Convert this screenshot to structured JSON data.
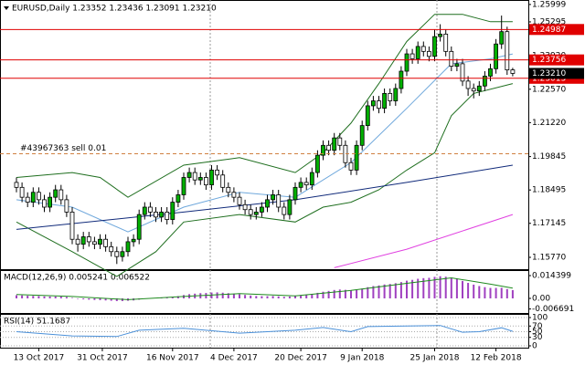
{
  "chart_data": [
    {
      "type": "candlestick",
      "title": "EURUSD,Daily  1.23352 1.23436 1.23091 1.23210",
      "open": [
        1.188,
        1.186,
        1.182,
        1.18,
        1.184,
        1.181,
        1.178,
        1.182,
        1.185,
        1.181,
        1.176,
        1.165,
        1.163,
        1.166,
        1.164,
        1.163,
        1.165,
        1.162,
        1.16,
        1.158,
        1.16,
        1.164,
        1.165,
        1.175,
        1.178,
        1.176,
        1.174,
        1.176,
        1.173,
        1.18,
        1.183,
        1.19,
        1.192,
        1.189,
        1.19,
        1.187,
        1.193,
        1.191,
        1.186,
        1.184,
        1.182,
        1.179,
        1.177,
        1.175,
        1.176,
        1.178,
        1.181,
        1.183,
        1.178,
        1.175,
        1.181,
        1.186,
        1.188,
        1.187,
        1.192,
        1.199,
        1.203,
        1.201,
        1.206,
        1.203,
        1.196,
        1.193,
        1.203,
        1.211,
        1.219,
        1.221,
        1.218,
        1.224,
        1.221,
        1.226,
        1.233,
        1.24,
        1.238,
        1.243,
        1.241,
        1.239,
        1.247,
        1.248,
        1.241,
        1.235,
        1.236,
        1.229,
        1.226,
        1.225,
        1.227,
        1.231,
        1.234,
        1.244,
        1.249,
        1.23352
      ],
      "high": [
        1.19,
        1.188,
        1.184,
        1.186,
        1.186,
        1.183,
        1.184,
        1.187,
        1.187,
        1.183,
        1.178,
        1.167,
        1.168,
        1.168,
        1.166,
        1.167,
        1.167,
        1.164,
        1.162,
        1.162,
        1.166,
        1.167,
        1.177,
        1.18,
        1.18,
        1.178,
        1.178,
        1.178,
        1.182,
        1.185,
        1.192,
        1.194,
        1.194,
        1.192,
        1.192,
        1.195,
        1.195,
        1.193,
        1.188,
        1.186,
        1.184,
        1.181,
        1.179,
        1.178,
        1.18,
        1.183,
        1.185,
        1.185,
        1.18,
        1.183,
        1.188,
        1.19,
        1.19,
        1.194,
        1.201,
        1.205,
        1.205,
        1.208,
        1.208,
        1.205,
        1.198,
        1.205,
        1.213,
        1.221,
        1.223,
        1.223,
        1.226,
        1.226,
        1.228,
        1.235,
        1.242,
        1.242,
        1.245,
        1.245,
        1.243,
        1.25,
        1.252,
        1.25,
        1.243,
        1.238,
        1.238,
        1.231,
        1.228,
        1.229,
        1.233,
        1.236,
        1.246,
        1.2555,
        1.251,
        1.23436
      ],
      "low": [
        1.184,
        1.18,
        1.178,
        1.178,
        1.179,
        1.176,
        1.176,
        1.18,
        1.179,
        1.174,
        1.163,
        1.16,
        1.161,
        1.162,
        1.161,
        1.161,
        1.16,
        1.158,
        1.155,
        1.156,
        1.158,
        1.162,
        1.163,
        1.173,
        1.174,
        1.172,
        1.172,
        1.171,
        1.171,
        1.178,
        1.181,
        1.188,
        1.187,
        1.187,
        1.185,
        1.185,
        1.189,
        1.184,
        1.182,
        1.18,
        1.177,
        1.175,
        1.173,
        1.173,
        1.174,
        1.176,
        1.179,
        1.176,
        1.173,
        1.173,
        1.179,
        1.184,
        1.185,
        1.185,
        1.19,
        1.197,
        1.199,
        1.199,
        1.201,
        1.194,
        1.191,
        1.191,
        1.201,
        1.209,
        1.217,
        1.216,
        1.216,
        1.219,
        1.219,
        1.224,
        1.231,
        1.236,
        1.236,
        1.239,
        1.237,
        1.237,
        1.245,
        1.239,
        1.233,
        1.233,
        1.227,
        1.223,
        1.222,
        1.223,
        1.225,
        1.229,
        1.232,
        1.242,
        1.2315,
        1.23091
      ],
      "close": [
        1.186,
        1.182,
        1.18,
        1.184,
        1.181,
        1.178,
        1.182,
        1.185,
        1.181,
        1.176,
        1.165,
        1.163,
        1.166,
        1.164,
        1.163,
        1.165,
        1.162,
        1.16,
        1.158,
        1.16,
        1.164,
        1.165,
        1.175,
        1.178,
        1.176,
        1.174,
        1.176,
        1.173,
        1.18,
        1.183,
        1.19,
        1.192,
        1.189,
        1.19,
        1.187,
        1.193,
        1.191,
        1.186,
        1.184,
        1.182,
        1.179,
        1.177,
        1.175,
        1.176,
        1.178,
        1.181,
        1.183,
        1.178,
        1.175,
        1.181,
        1.186,
        1.188,
        1.187,
        1.192,
        1.199,
        1.203,
        1.201,
        1.206,
        1.203,
        1.196,
        1.193,
        1.203,
        1.211,
        1.219,
        1.221,
        1.218,
        1.224,
        1.221,
        1.226,
        1.233,
        1.24,
        1.238,
        1.243,
        1.241,
        1.239,
        1.247,
        1.248,
        1.241,
        1.235,
        1.236,
        1.229,
        1.226,
        1.225,
        1.227,
        1.231,
        1.234,
        1.244,
        1.249,
        1.23352,
        1.2321
      ],
      "up_color": "#00b000",
      "down_color": "#ffffff",
      "series": [
        {
          "color": "#1e6e1e",
          "x": [
            0,
            10,
            15,
            20,
            30,
            40,
            50,
            55,
            60,
            65,
            70,
            75,
            80,
            85,
            89
          ],
          "values": [
            1.19,
            1.192,
            1.19,
            1.182,
            1.195,
            1.198,
            1.192,
            1.2,
            1.212,
            1.228,
            1.245,
            1.256,
            1.256,
            1.253,
            1.253
          ]
        },
        {
          "color": "#1e6e1e",
          "x": [
            0,
            10,
            18,
            25,
            30,
            40,
            50,
            55,
            60,
            65,
            70,
            75,
            78,
            82,
            89
          ],
          "values": [
            1.172,
            1.16,
            1.15,
            1.16,
            1.172,
            1.175,
            1.172,
            1.178,
            1.18,
            1.185,
            1.193,
            1.2,
            1.215,
            1.224,
            1.228
          ]
        },
        {
          "color": "#6fa8dc",
          "x": [
            0,
            10,
            20,
            30,
            40,
            50,
            60,
            70,
            78,
            85,
            89
          ],
          "values": [
            1.181,
            1.178,
            1.168,
            1.178,
            1.184,
            1.182,
            1.196,
            1.218,
            1.236,
            1.238,
            1.24
          ]
        },
        {
          "color": "#102a7a",
          "x": [
            0,
            30,
            50,
            70,
            89
          ],
          "values": [
            1.169,
            1.176,
            1.181,
            1.188,
            1.195
          ]
        },
        {
          "color": "#e040e0",
          "x": [
            57,
            70,
            89
          ],
          "values": [
            1.1535,
            1.161,
            1.175
          ]
        }
      ],
      "ylim": [
        1.1529,
        1.2618
      ],
      "yticks": [
        1.25999,
        1.25295,
        {
          "value": 1.2392,
          "label": "1.23920"
        },
        {
          "value": 1.2257,
          "label": "1.22570"
        },
        {
          "value": 1.2122,
          "label": "1.21220"
        },
        1.19845,
        1.18495,
        1.17145,
        {
          "value": 1.1577,
          "label": "1.15770"
        }
      ],
      "levels": [
        1.24987,
        1.23756,
        1.23013
      ],
      "level_color": "#e00000",
      "last_price": {
        "value": 1.2321,
        "label": "1.23210"
      },
      "order": {
        "label": "#43967363 sell 0.01",
        "value": 1.1996,
        "color": "#d08040"
      },
      "xticks": [
        {
          "value": 4,
          "label": "13 Oct 2017"
        },
        {
          "value": 15.4,
          "label": "31 Oct 2017"
        },
        {
          "value": 28,
          "label": "16 Nov 2017"
        },
        {
          "value": 39,
          "label": "4 Dec 2017"
        },
        {
          "value": 51,
          "label": "20 Dec 2017"
        },
        {
          "value": 62,
          "label": "9 Jan 2018"
        },
        {
          "value": 75,
          "label": "25 Jan 2018"
        },
        {
          "value": 86,
          "label": "12 Feb 2018"
        }
      ]
    },
    {
      "type": "bar",
      "title": "MACD(12,26,9) 0.005241 0.006522",
      "values": [
        0.002,
        0.0019,
        0.0017,
        0.0016,
        0.0015,
        0.0013,
        0.0012,
        0.0012,
        0.0011,
        0.0009,
        0.0003,
        -0.0003,
        -0.0006,
        -0.0008,
        -0.001,
        -0.0011,
        -0.0013,
        -0.0015,
        -0.0017,
        -0.0017,
        -0.0015,
        -0.0013,
        -0.0008,
        -0.0003,
        0.0,
        0.0002,
        0.0004,
        0.0005,
        0.0009,
        0.0014,
        0.0021,
        0.0027,
        0.003,
        0.0033,
        0.0034,
        0.0037,
        0.0038,
        0.0036,
        0.0033,
        0.003,
        0.0026,
        0.0022,
        0.0018,
        0.0015,
        0.0014,
        0.0014,
        0.0015,
        0.0013,
        0.001,
        0.0012,
        0.0016,
        0.002,
        0.0023,
        0.0028,
        0.0035,
        0.0042,
        0.0047,
        0.0053,
        0.0056,
        0.0054,
        0.0051,
        0.0055,
        0.0062,
        0.0071,
        0.0078,
        0.0082,
        0.0088,
        0.0091,
        0.0096,
        0.0103,
        0.0112,
        0.0117,
        0.0124,
        0.0128,
        0.013,
        0.0136,
        0.014,
        0.0137,
        0.013,
        0.0124,
        0.011,
        0.0098,
        0.0087,
        0.0078,
        0.0071,
        0.0066,
        0.0066,
        0.0067,
        0.0059,
        0.005241
      ],
      "color": "#a040c0",
      "series": [
        {
          "color": "#1e8a1e",
          "x": [
            0,
            10,
            20,
            30,
            40,
            50,
            60,
            70,
            78,
            85,
            89
          ],
          "values": [
            0.0025,
            0.0012,
            -0.0008,
            0.0012,
            0.003,
            0.0016,
            0.005,
            0.0095,
            0.013,
            0.009,
            0.006522
          ]
        }
      ],
      "ylim": [
        -0.0098,
        0.0173
      ],
      "yticks": [
        0.014399,
        {
          "value": 0,
          "label": "0.00"
        },
        -0.006691
      ]
    },
    {
      "type": "line",
      "title": "RSI(14) 51.1687",
      "series": [
        {
          "color": "#4a90d9",
          "x": [
            0,
            10,
            18,
            22,
            30,
            40,
            50,
            55,
            60,
            63,
            70,
            76,
            80,
            83,
            87,
            89
          ],
          "values": [
            50,
            35,
            33,
            55,
            62,
            45,
            55,
            65,
            50,
            68,
            70,
            72,
            48,
            50,
            64,
            51.1687
          ]
        }
      ],
      "ylim": [
        0,
        100
      ],
      "yticks": [
        100,
        70,
        50,
        30,
        0
      ],
      "grid": true
    }
  ]
}
